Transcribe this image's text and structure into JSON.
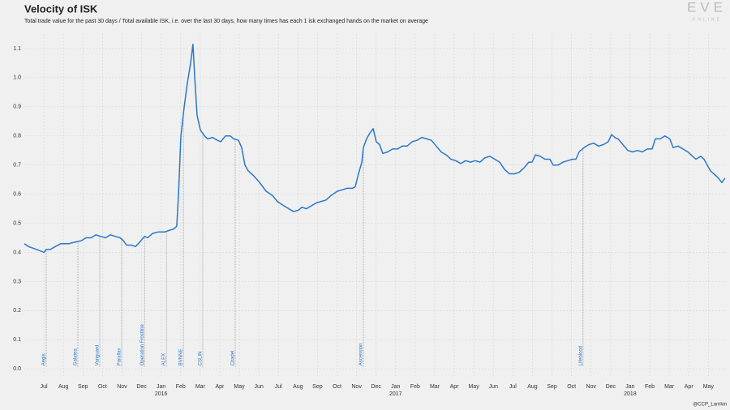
{
  "chart_data": {
    "type": "line",
    "title": "Velocity of ISK",
    "subtitle": "Total trade value for the past 30 days / Total available ISK, i.e. over the last 30 days, how many times has each 1 isk exchanged hands on the market on average",
    "logo": "EVE",
    "logo_sub": "ONLINE",
    "credit": "@CCP_Larrikin",
    "grid": true,
    "color": "#2a78c8",
    "xlim": [
      -1.0,
      34.9
    ],
    "ylim": [
      -0.03,
      1.15
    ],
    "yticks": [
      {
        "value": 0,
        "label": "0.0"
      },
      0.1,
      0.2,
      0.3,
      0.4,
      0.5,
      0.6,
      0.7,
      0.8,
      0.9,
      {
        "value": 1,
        "label": "1.0"
      },
      1.1
    ],
    "xticks": [
      {
        "value": 0,
        "label": "Jul"
      },
      {
        "value": 1,
        "label": "Aug"
      },
      {
        "value": 2,
        "label": "Sep"
      },
      {
        "value": 3,
        "label": "Oct"
      },
      {
        "value": 4,
        "label": "Nov"
      },
      {
        "value": 5,
        "label": "Dec"
      },
      {
        "value": 6,
        "label": "Jan"
      },
      {
        "value": 7,
        "label": "Feb"
      },
      {
        "value": 8,
        "label": "Mar"
      },
      {
        "value": 9,
        "label": "Apr"
      },
      {
        "value": 10,
        "label": "May"
      },
      {
        "value": 11,
        "label": "Jun"
      },
      {
        "value": 12,
        "label": "Jul"
      },
      {
        "value": 13,
        "label": "Aug"
      },
      {
        "value": 14,
        "label": "Sep"
      },
      {
        "value": 15,
        "label": "Oct"
      },
      {
        "value": 16,
        "label": "Nov"
      },
      {
        "value": 17,
        "label": "Dec"
      },
      {
        "value": 18,
        "label": "Jan"
      },
      {
        "value": 19,
        "label": "Feb"
      },
      {
        "value": 20,
        "label": "Mar"
      },
      {
        "value": 21,
        "label": "Apr"
      },
      {
        "value": 22,
        "label": "May"
      },
      {
        "value": 23,
        "label": "Jun"
      },
      {
        "value": 24,
        "label": "Jul"
      },
      {
        "value": 25,
        "label": "Aug"
      },
      {
        "value": 26,
        "label": "Sep"
      },
      {
        "value": 27,
        "label": "Oct"
      },
      {
        "value": 28,
        "label": "Nov"
      },
      {
        "value": 29,
        "label": "Dec"
      },
      {
        "value": 30,
        "label": "Jan"
      },
      {
        "value": 31,
        "label": "Feb"
      },
      {
        "value": 32,
        "label": "Mar"
      },
      {
        "value": 33,
        "label": "Apr"
      },
      {
        "value": 34,
        "label": "May"
      }
    ],
    "year_labels": [
      {
        "value": 6,
        "label": "2016"
      },
      {
        "value": 18,
        "label": "2017"
      },
      {
        "value": 30,
        "label": "2018"
      }
    ],
    "events": [
      {
        "x": 0.12,
        "label": "Aegis"
      },
      {
        "x": 1.74,
        "label": "Galatea"
      },
      {
        "x": 2.86,
        "label": "Vanguard"
      },
      {
        "x": 3.98,
        "label": "Parallax"
      },
      {
        "x": 5.15,
        "label": "Operation Frostline"
      },
      {
        "x": 6.27,
        "label": "ALEX"
      },
      {
        "x": 7.14,
        "label": "BVNNE"
      },
      {
        "x": 8.13,
        "label": "CSLIN"
      },
      {
        "x": 9.79,
        "label": "Citadel"
      },
      {
        "x": 16.35,
        "label": "Ascension"
      },
      {
        "x": 27.59,
        "label": "Lifeblood"
      }
    ],
    "x": [
      -1.0,
      -0.79,
      -0.58,
      -0.37,
      -0.17,
      0,
      0.12,
      0.33,
      0.58,
      0.87,
      1.29,
      1.58,
      1.91,
      2.16,
      2.41,
      2.66,
      2.9,
      3.15,
      3.4,
      3.65,
      3.9,
      4.07,
      4.23,
      4.48,
      4.69,
      4.9,
      5.15,
      5.31,
      5.56,
      5.85,
      6.18,
      6.39,
      6.64,
      6.8,
      6.89,
      7.01,
      7.18,
      7.34,
      7.51,
      7.63,
      7.72,
      7.84,
      8.01,
      8.22,
      8.38,
      8.63,
      8.88,
      9.05,
      9.29,
      9.54,
      9.71,
      9.96,
      10.12,
      10.29,
      10.46,
      10.71,
      11.04,
      11.37,
      11.7,
      11.95,
      12.28,
      12.53,
      12.78,
      13.03,
      13.2,
      13.44,
      13.69,
      13.94,
      14.19,
      14.44,
      14.69,
      15.02,
      15.27,
      15.52,
      15.77,
      15.93,
      16.1,
      16.27,
      16.35,
      16.51,
      16.68,
      16.85,
      17.01,
      17.18,
      17.34,
      17.59,
      17.84,
      18.09,
      18.34,
      18.59,
      18.84,
      19.09,
      19.34,
      19.59,
      19.83,
      20.08,
      20.33,
      20.58,
      20.83,
      21.08,
      21.33,
      21.58,
      21.83,
      22.07,
      22.32,
      22.57,
      22.82,
      23.07,
      23.32,
      23.57,
      23.82,
      24.07,
      24.32,
      24.56,
      24.81,
      24.98,
      25.15,
      25.39,
      25.64,
      25.89,
      26.06,
      26.31,
      26.56,
      26.8,
      27.05,
      27.22,
      27.39,
      27.64,
      27.88,
      28.13,
      28.38,
      28.63,
      28.88,
      29.05,
      29.21,
      29.38,
      29.63,
      29.88,
      30.12,
      30.37,
      30.62,
      30.87,
      31.12,
      31.29,
      31.54,
      31.78,
      32.03,
      32.2,
      32.45,
      32.7,
      32.95,
      33.2,
      33.36,
      33.61,
      33.78,
      33.94,
      34.11,
      34.36,
      34.52,
      34.69,
      34.85
    ],
    "values": [
      0.43,
      0.42,
      0.415,
      0.41,
      0.405,
      0.4,
      0.41,
      0.41,
      0.42,
      0.43,
      0.43,
      0.435,
      0.44,
      0.45,
      0.45,
      0.46,
      0.455,
      0.45,
      0.46,
      0.455,
      0.45,
      0.44,
      0.425,
      0.425,
      0.42,
      0.435,
      0.455,
      0.45,
      0.465,
      0.47,
      0.47,
      0.475,
      0.48,
      0.49,
      0.6,
      0.8,
      0.9,
      0.98,
      1.05,
      1.115,
      1.0,
      0.87,
      0.82,
      0.8,
      0.79,
      0.795,
      0.785,
      0.78,
      0.8,
      0.8,
      0.79,
      0.785,
      0.76,
      0.7,
      0.68,
      0.665,
      0.64,
      0.61,
      0.595,
      0.575,
      0.56,
      0.55,
      0.54,
      0.545,
      0.555,
      0.55,
      0.56,
      0.57,
      0.575,
      0.58,
      0.595,
      0.61,
      0.615,
      0.62,
      0.62,
      0.625,
      0.67,
      0.71,
      0.76,
      0.79,
      0.81,
      0.825,
      0.78,
      0.77,
      0.74,
      0.745,
      0.755,
      0.755,
      0.765,
      0.765,
      0.78,
      0.785,
      0.795,
      0.79,
      0.785,
      0.765,
      0.745,
      0.735,
      0.72,
      0.715,
      0.705,
      0.715,
      0.71,
      0.715,
      0.71,
      0.725,
      0.73,
      0.72,
      0.71,
      0.685,
      0.67,
      0.67,
      0.675,
      0.69,
      0.71,
      0.71,
      0.735,
      0.73,
      0.72,
      0.72,
      0.7,
      0.7,
      0.71,
      0.715,
      0.72,
      0.72,
      0.745,
      0.76,
      0.77,
      0.775,
      0.765,
      0.77,
      0.78,
      0.805,
      0.795,
      0.79,
      0.77,
      0.75,
      0.745,
      0.75,
      0.745,
      0.755,
      0.755,
      0.79,
      0.79,
      0.8,
      0.79,
      0.76,
      0.765,
      0.755,
      0.745,
      0.73,
      0.72,
      0.73,
      0.72,
      0.7,
      0.68,
      0.665,
      0.655,
      0.64,
      0.655
    ]
  }
}
